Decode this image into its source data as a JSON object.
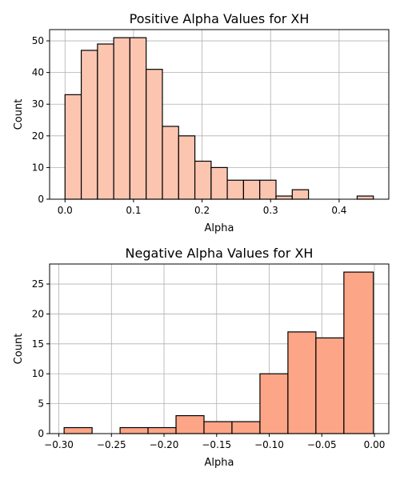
{
  "chart_data": [
    {
      "type": "bar",
      "title": "Positive Alpha Values for XH",
      "xlabel": "Alpha",
      "ylabel": "Count",
      "xlim": [
        -0.0225,
        0.4725
      ],
      "ylim": [
        0,
        53.55
      ],
      "xticks": [
        0.0,
        0.1,
        0.2,
        0.3,
        0.4
      ],
      "xtick_labels": [
        "0.0",
        "0.1",
        "0.2",
        "0.3",
        "0.4"
      ],
      "yticks": [
        0,
        10,
        20,
        30,
        40,
        50
      ],
      "ytick_labels": [
        "0",
        "10",
        "20",
        "30",
        "40",
        "50"
      ],
      "grid": true,
      "bar_color": "#fcc5b0",
      "bins": [
        {
          "x0": 0.0,
          "x1": 0.0237,
          "count": 33
        },
        {
          "x0": 0.0237,
          "x1": 0.0474,
          "count": 47
        },
        {
          "x0": 0.0474,
          "x1": 0.0711,
          "count": 49
        },
        {
          "x0": 0.0711,
          "x1": 0.0947,
          "count": 51
        },
        {
          "x0": 0.0947,
          "x1": 0.1184,
          "count": 51
        },
        {
          "x0": 0.1184,
          "x1": 0.1421,
          "count": 41
        },
        {
          "x0": 0.1421,
          "x1": 0.1658,
          "count": 23
        },
        {
          "x0": 0.1658,
          "x1": 0.1895,
          "count": 20
        },
        {
          "x0": 0.1895,
          "x1": 0.2132,
          "count": 12
        },
        {
          "x0": 0.2132,
          "x1": 0.2368,
          "count": 10
        },
        {
          "x0": 0.2368,
          "x1": 0.2605,
          "count": 6
        },
        {
          "x0": 0.2605,
          "x1": 0.2842,
          "count": 6
        },
        {
          "x0": 0.2842,
          "x1": 0.3079,
          "count": 6
        },
        {
          "x0": 0.3079,
          "x1": 0.3316,
          "count": 1
        },
        {
          "x0": 0.3316,
          "x1": 0.3553,
          "count": 3
        },
        {
          "x0": 0.3553,
          "x1": 0.3789,
          "count": 0
        },
        {
          "x0": 0.3789,
          "x1": 0.4026,
          "count": 0
        },
        {
          "x0": 0.4026,
          "x1": 0.4263,
          "count": 0
        },
        {
          "x0": 0.4263,
          "x1": 0.45,
          "count": 1
        }
      ]
    },
    {
      "type": "bar",
      "title": "Negative Alpha Values for XH",
      "xlabel": "Alpha",
      "ylabel": "Count",
      "xlim": [
        -0.3088,
        0.0137
      ],
      "ylim": [
        0,
        28.35
      ],
      "xticks": [
        -0.3,
        -0.25,
        -0.2,
        -0.15,
        -0.1,
        -0.05,
        0.0
      ],
      "xtick_labels": [
        "−0.30",
        "−0.25",
        "−0.20",
        "−0.15",
        "−0.10",
        "−0.05",
        "0.00"
      ],
      "yticks": [
        0,
        5,
        10,
        15,
        20,
        25
      ],
      "ytick_labels": [
        "0",
        "5",
        "10",
        "15",
        "20",
        "25"
      ],
      "grid": true,
      "bar_color": "#fca587",
      "bins": [
        {
          "x0": -0.295,
          "x1": -0.2684,
          "count": 1
        },
        {
          "x0": -0.2684,
          "x1": -0.2418,
          "count": 0
        },
        {
          "x0": -0.2418,
          "x1": -0.2152,
          "count": 1
        },
        {
          "x0": -0.2152,
          "x1": -0.1886,
          "count": 1
        },
        {
          "x0": -0.1886,
          "x1": -0.162,
          "count": 3
        },
        {
          "x0": -0.162,
          "x1": -0.1354,
          "count": 2
        },
        {
          "x0": -0.1354,
          "x1": -0.1088,
          "count": 2
        },
        {
          "x0": -0.1088,
          "x1": -0.0822,
          "count": 10
        },
        {
          "x0": -0.0822,
          "x1": -0.0556,
          "count": 17
        },
        {
          "x0": -0.0556,
          "x1": -0.029,
          "count": 16
        },
        {
          "x0": -0.029,
          "x1": -0.001,
          "count": 27
        }
      ]
    }
  ]
}
